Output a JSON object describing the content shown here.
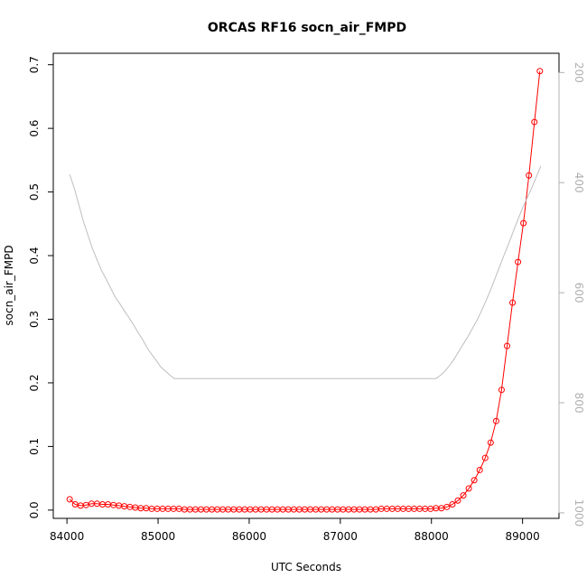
{
  "chart_data": {
    "type": "line",
    "title": "ORCAS RF16 socn_air_FMPD",
    "xlabel": "UTC Seconds",
    "ylabel": "socn_air_FMPD",
    "xlim": [
      83850,
      89400
    ],
    "ylim": [
      -0.013,
      0.718
    ],
    "x_ticks": [
      84000,
      85000,
      86000,
      87000,
      88000,
      89000
    ],
    "y_ticks": [
      0.0,
      0.1,
      0.2,
      0.3,
      0.4,
      0.5,
      0.6,
      0.7
    ],
    "y_tick_labels": [
      "0.0",
      "0.1",
      "0.2",
      "0.3",
      "0.4",
      "0.5",
      "0.6",
      "0.7"
    ],
    "y2_lim": [
      1010,
      165
    ],
    "y2_ticks": [
      200,
      400,
      600,
      800,
      1000
    ],
    "grid": false,
    "series": [
      {
        "color": "#ff0000",
        "marker": "open-circle",
        "x": [
          84030,
          84090,
          84150,
          84210,
          84270,
          84330,
          84390,
          84450,
          84510,
          84570,
          84630,
          84690,
          84750,
          84810,
          84870,
          84930,
          84990,
          85050,
          85110,
          85170,
          85230,
          85290,
          85350,
          85410,
          85470,
          85530,
          85590,
          85650,
          85710,
          85770,
          85830,
          85890,
          85950,
          86010,
          86070,
          86130,
          86190,
          86250,
          86310,
          86370,
          86430,
          86490,
          86550,
          86610,
          86670,
          86730,
          86790,
          86850,
          86910,
          86970,
          87030,
          87090,
          87150,
          87210,
          87270,
          87330,
          87390,
          87450,
          87510,
          87570,
          87630,
          87690,
          87750,
          87810,
          87870,
          87930,
          87990,
          88050,
          88110,
          88170,
          88230,
          88290,
          88350,
          88410,
          88470,
          88530,
          88590,
          88650,
          88710,
          88770,
          88830,
          88890,
          88950,
          89010,
          89070,
          89130,
          89190
        ],
        "y": [
          0.017,
          0.009,
          0.007,
          0.008,
          0.01,
          0.01,
          0.009,
          0.009,
          0.008,
          0.007,
          0.006,
          0.005,
          0.004,
          0.003,
          0.003,
          0.002,
          0.002,
          0.002,
          0.002,
          0.002,
          0.002,
          0.001,
          0.001,
          0.001,
          0.001,
          0.001,
          0.001,
          0.001,
          0.001,
          0.001,
          0.001,
          0.001,
          0.001,
          0.001,
          0.001,
          0.001,
          0.001,
          0.001,
          0.001,
          0.001,
          0.001,
          0.001,
          0.001,
          0.001,
          0.001,
          0.001,
          0.001,
          0.001,
          0.001,
          0.001,
          0.001,
          0.001,
          0.001,
          0.001,
          0.001,
          0.001,
          0.001,
          0.002,
          0.002,
          0.002,
          0.002,
          0.002,
          0.002,
          0.002,
          0.002,
          0.002,
          0.002,
          0.003,
          0.003,
          0.005,
          0.009,
          0.015,
          0.023,
          0.034,
          0.047,
          0.063,
          0.082,
          0.106,
          0.14,
          0.189,
          0.258,
          0.326,
          0.39,
          0.451,
          0.526,
          0.61,
          0.69
        ]
      },
      {
        "color": "#bebebe",
        "axis": "right",
        "x": [
          84030,
          84080,
          84130,
          84180,
          84230,
          84280,
          84330,
          84380,
          84430,
          84480,
          84530,
          84580,
          84630,
          84680,
          84730,
          84780,
          84830,
          84880,
          84930,
          84980,
          85030,
          85080,
          85130,
          85180,
          85300,
          85500,
          86000,
          86500,
          87000,
          87500,
          88000,
          88050,
          88100,
          88150,
          88200,
          88250,
          88300,
          88350,
          88400,
          88450,
          88500,
          88550,
          88600,
          88650,
          88700,
          88750,
          88800,
          88850,
          88900,
          88950,
          89000,
          89050,
          89100,
          89150,
          89200
        ],
        "y": [
          385,
          410,
          440,
          470,
          495,
          520,
          540,
          560,
          575,
          592,
          608,
          620,
          633,
          645,
          658,
          672,
          685,
          700,
          712,
          723,
          735,
          742,
          750,
          756,
          756,
          756,
          756,
          756,
          756,
          756,
          756,
          756,
          750,
          742,
          732,
          720,
          707,
          693,
          680,
          665,
          650,
          633,
          614,
          595,
          573,
          552,
          530,
          510,
          488,
          467,
          446,
          428,
          410,
          390,
          370
        ]
      }
    ]
  }
}
